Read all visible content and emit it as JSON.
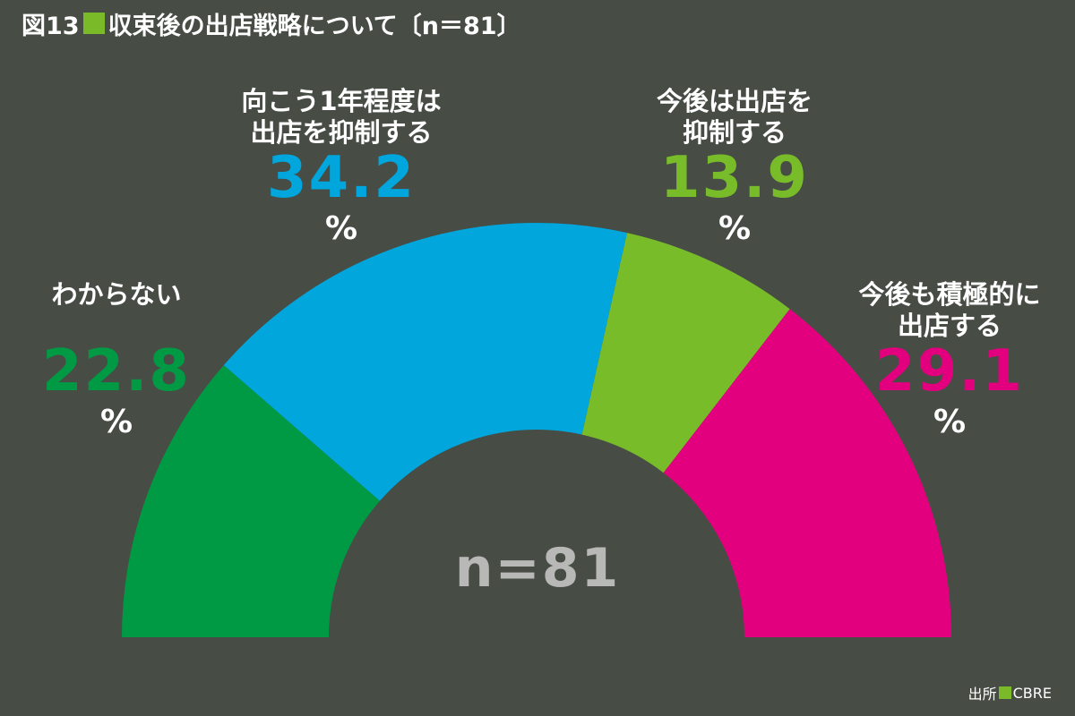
{
  "chart_data": {
    "type": "pie",
    "variant": "semi-donut",
    "title_prefix": "図13",
    "title_text": "収束後の出店戦略について〔n＝81〕",
    "center_text": "n=81",
    "value_unit": "%",
    "slices": [
      {
        "label": "わからない",
        "value": 22.8,
        "color": "#009a44"
      },
      {
        "label": "向こう1年程度は出店を抑制する",
        "value": 34.2,
        "color": "#00a6dc"
      },
      {
        "label": "今後は出店を抑制する",
        "value": 13.9,
        "color": "#78bc2a"
      },
      {
        "label": "今後も積極的に出店する",
        "value": 29.1,
        "color": "#e3007f"
      }
    ]
  },
  "labels": {
    "wakaranai": {
      "line1": "わからない",
      "line2": "",
      "value": "22.8",
      "unit": "%"
    },
    "kokoichinen": {
      "line1": "向こう1年程度は",
      "line2": "出店を抑制する",
      "value": "34.2",
      "unit": "%"
    },
    "kongo_yokusei": {
      "line1": "今後は出店を",
      "line2": "抑制する",
      "value": "13.9",
      "unit": "%"
    },
    "kongo_sekkyoku": {
      "line1": "今後も積極的に",
      "line2": "出店する",
      "value": "29.1",
      "unit": "%"
    }
  },
  "source": {
    "prefix": "出所",
    "name": "CBRE",
    "marker_color": "#7ab928"
  },
  "colors": {
    "background": "#474c45",
    "center_text": "#b8b8b6"
  }
}
